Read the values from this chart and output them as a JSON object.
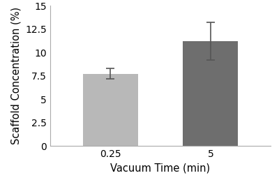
{
  "categories": [
    "0.25",
    "5"
  ],
  "values": [
    7.7,
    11.2
  ],
  "errors": [
    0.55,
    2.0
  ],
  "bar_colors": [
    "#b8b8b8",
    "#6e6e6e"
  ],
  "bar_width": 0.55,
  "xlabel": "Vacuum Time (min)",
  "ylabel": "Scaffold Concentration (%)",
  "ylim": [
    0,
    15
  ],
  "yticks": [
    0,
    2.5,
    5.0,
    7.5,
    10.0,
    12.5,
    15.0
  ],
  "ytick_labels": [
    "0",
    "2.5",
    "5",
    "7.5",
    "10",
    "12.5",
    "15"
  ],
  "background_color": "#ffffff",
  "xlabel_fontsize": 10.5,
  "ylabel_fontsize": 10.5,
  "tick_fontsize": 10,
  "error_capsize": 4,
  "error_linewidth": 1.2,
  "spine_color": "#aaaaaa"
}
